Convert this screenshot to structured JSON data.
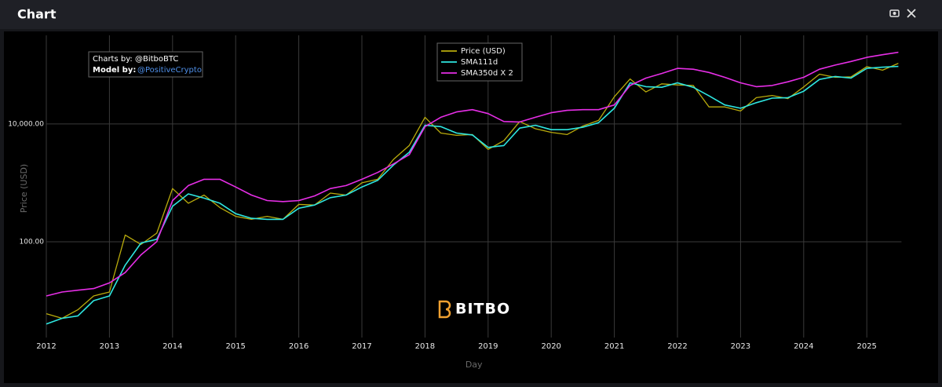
{
  "header": {
    "title": "Chart"
  },
  "chart_data": {
    "type": "line",
    "y_scale": "log",
    "ylabel": "Price (USD)",
    "xlabel": "Day",
    "annotation": "Charts by: @BitboBTC",
    "model_label": "Model by:",
    "model_author": "@PositiveCrypto",
    "watermark": "BITBO",
    "legend": "top-center",
    "grid": true,
    "xlim": [
      2012,
      2025.55
    ],
    "xticks": [
      2012,
      2013,
      2014,
      2015,
      2016,
      2017,
      2018,
      2019,
      2020,
      2021,
      2022,
      2023,
      2024,
      2025
    ],
    "ylim": [
      2.36,
      320000
    ],
    "yticks": [
      {
        "value": 100,
        "label": "100.00"
      },
      {
        "value": 10000,
        "label": "10,000.00"
      }
    ],
    "x": [
      2012,
      2012.25,
      2012.5,
      2012.75,
      2013,
      2013.25,
      2013.5,
      2013.75,
      2014,
      2014.25,
      2014.5,
      2014.75,
      2015,
      2015.25,
      2015.5,
      2015.75,
      2016,
      2016.25,
      2016.5,
      2016.75,
      2017,
      2017.25,
      2017.5,
      2017.75,
      2018,
      2018.25,
      2018.5,
      2018.75,
      2019,
      2019.25,
      2019.5,
      2019.75,
      2020,
      2020.25,
      2020.5,
      2020.75,
      2021,
      2021.25,
      2021.5,
      2021.75,
      2022,
      2022.25,
      2022.5,
      2022.75,
      2023,
      2023.25,
      2023.5,
      2023.75,
      2024,
      2024.25,
      2024.5,
      2024.75,
      2025,
      2025.25,
      2025.5
    ],
    "series": [
      {
        "name": "Price (USD)",
        "color": "#b9ab0c",
        "values": [
          6,
          5,
          7,
          12,
          14,
          130,
          90,
          140,
          800,
          450,
          620,
          380,
          270,
          240,
          270,
          240,
          430,
          420,
          670,
          620,
          1000,
          1150,
          2500,
          4300,
          13000,
          7000,
          6400,
          6600,
          3700,
          5200,
          11000,
          8300,
          7200,
          6600,
          9200,
          11500,
          29000,
          58000,
          35000,
          48000,
          46000,
          45000,
          19500,
          19500,
          16600,
          28000,
          30500,
          27000,
          42500,
          70000,
          62000,
          63000,
          94000,
          82000,
          107000
        ]
      },
      {
        "name": "SMA111d",
        "color": "#2ee6e0",
        "values": [
          4,
          5,
          5.5,
          10,
          12,
          40,
          95,
          110,
          400,
          650,
          550,
          450,
          300,
          250,
          240,
          240,
          370,
          420,
          560,
          620,
          850,
          1100,
          2000,
          3300,
          9500,
          9000,
          7000,
          6500,
          4000,
          4300,
          8500,
          9500,
          8000,
          8000,
          8800,
          10500,
          18500,
          50000,
          43000,
          42000,
          50000,
          42000,
          30000,
          21000,
          18500,
          23000,
          27500,
          28000,
          36000,
          57000,
          64000,
          60000,
          88000,
          92000,
          95000
        ]
      },
      {
        "name": "SMA350d X 2",
        "color": "#e62ee6",
        "values": [
          12,
          14,
          15,
          16,
          20,
          30,
          60,
          100,
          500,
          900,
          1150,
          1150,
          850,
          620,
          500,
          480,
          500,
          600,
          800,
          900,
          1150,
          1500,
          2100,
          3000,
          9000,
          13000,
          16000,
          17500,
          15000,
          11000,
          10800,
          13000,
          15500,
          17000,
          17500,
          17500,
          21000,
          45000,
          60000,
          72000,
          88000,
          85000,
          75000,
          62000,
          50000,
          43000,
          45000,
          52000,
          62000,
          85000,
          100000,
          115000,
          135000,
          150000,
          165000
        ]
      }
    ]
  }
}
